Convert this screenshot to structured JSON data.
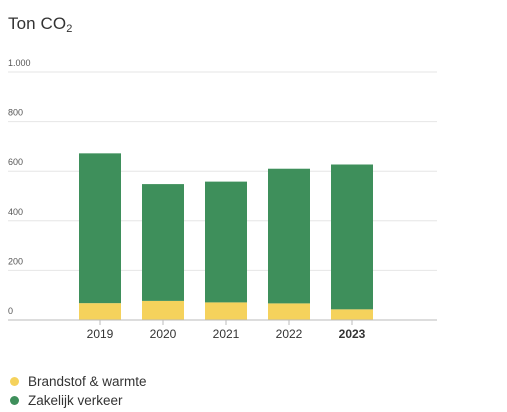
{
  "chart_data": {
    "type": "bar",
    "stacked": true,
    "title_main": "Ton CO",
    "title_sub": "2",
    "categories": [
      "2019",
      "2020",
      "2021",
      "2022",
      "2023"
    ],
    "highlight_category": "2023",
    "series": [
      {
        "name": "Brandstof & warmte",
        "color": "#f5d25c",
        "values": [
          68,
          77,
          71,
          67,
          43
        ]
      },
      {
        "name": "Zakelijk verkeer",
        "color": "#3e8f5b",
        "values": [
          604,
          471,
          487,
          543,
          584
        ]
      }
    ],
    "yticks": [
      0,
      200,
      400,
      600,
      800,
      1000
    ],
    "ytick_labels": [
      "0",
      "200",
      "400",
      "600",
      "800",
      "1.000"
    ],
    "ylim": [
      0,
      1000
    ],
    "grid": true,
    "legend_position": "bottom-left"
  }
}
